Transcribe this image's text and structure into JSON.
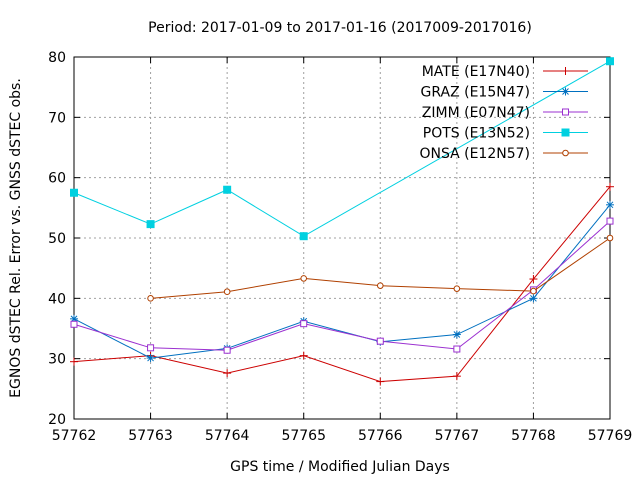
{
  "chart_data": {
    "type": "line",
    "title": "Period: 2017-01-09 to 2017-01-16 (2017009-2017016)",
    "xlabel": "GPS time / Modified Julian Days",
    "ylabel": "EGNOS dSTEC Rel. Error vs. GNSS dSTEC obs.",
    "x": [
      57762,
      57763,
      57764,
      57765,
      57766,
      57767,
      57768,
      57769
    ],
    "x_ticks": [
      "57762",
      "57763",
      "57764",
      "57765",
      "57766",
      "57767",
      "57768",
      "57769"
    ],
    "xlim": [
      57762,
      57769
    ],
    "ylim": [
      20,
      80
    ],
    "y_ticks": [
      "20",
      "30",
      "40",
      "50",
      "60",
      "70",
      "80"
    ],
    "grid": true,
    "legend_position": "top-right",
    "series": [
      {
        "name": "MATE (E17N40)",
        "color": "#cc0000",
        "marker": "plus",
        "values": [
          29.5,
          30.5,
          27.6,
          30.5,
          26.2,
          27.1,
          43.2,
          58.5
        ]
      },
      {
        "name": "GRAZ (E15N47)",
        "color": "#0070c0",
        "marker": "star",
        "values": [
          36.6,
          30.1,
          31.7,
          36.2,
          32.8,
          34.0,
          40.0,
          55.5
        ]
      },
      {
        "name": "ZIMM (E07N47)",
        "color": "#9b30d0",
        "marker": "square-open",
        "values": [
          35.7,
          31.8,
          31.4,
          35.8,
          32.9,
          31.6,
          41.4,
          52.8
        ]
      },
      {
        "name": "POTS (E13N52)",
        "color": "#00d0e0",
        "marker": "square-filled",
        "values": [
          57.5,
          52.3,
          58.0,
          50.3,
          null,
          null,
          null,
          79.3
        ]
      },
      {
        "name": "ONSA (E12N57)",
        "color": "#b04000",
        "marker": "circle-open",
        "values": [
          null,
          40.0,
          41.1,
          43.3,
          42.1,
          41.6,
          41.2,
          50.0
        ]
      }
    ]
  }
}
